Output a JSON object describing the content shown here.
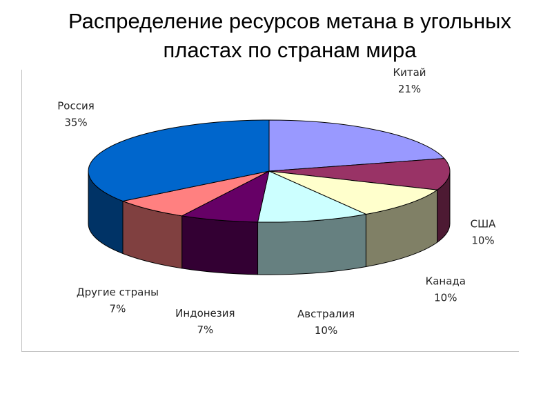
{
  "slide": {
    "title_line1": "Распределение ресурсов метана в угольных",
    "title_line2": "пластах по странам мира"
  },
  "chart_data": {
    "type": "pie",
    "title": "Распределение ресурсов метана в угольных пластах по странам мира",
    "style": "3d",
    "legend": "none",
    "slices": [
      {
        "name": "Китай",
        "value": 21,
        "label": "21%",
        "color": "#9999ff"
      },
      {
        "name": "США",
        "value": 10,
        "label": "10%",
        "color": "#993366"
      },
      {
        "name": "Канада",
        "value": 10,
        "label": "10%",
        "color": "#ffffcc"
      },
      {
        "name": "Австралия",
        "value": 10,
        "label": "10%",
        "color": "#ccffff"
      },
      {
        "name": "Индонезия",
        "value": 7,
        "label": "7%",
        "color": "#660066"
      },
      {
        "name": "Другие страны",
        "value": 7,
        "label": "7%",
        "color": "#ff8080"
      },
      {
        "name": "Россия",
        "value": 35,
        "label": "35%",
        "color": "#0066cc"
      }
    ]
  }
}
